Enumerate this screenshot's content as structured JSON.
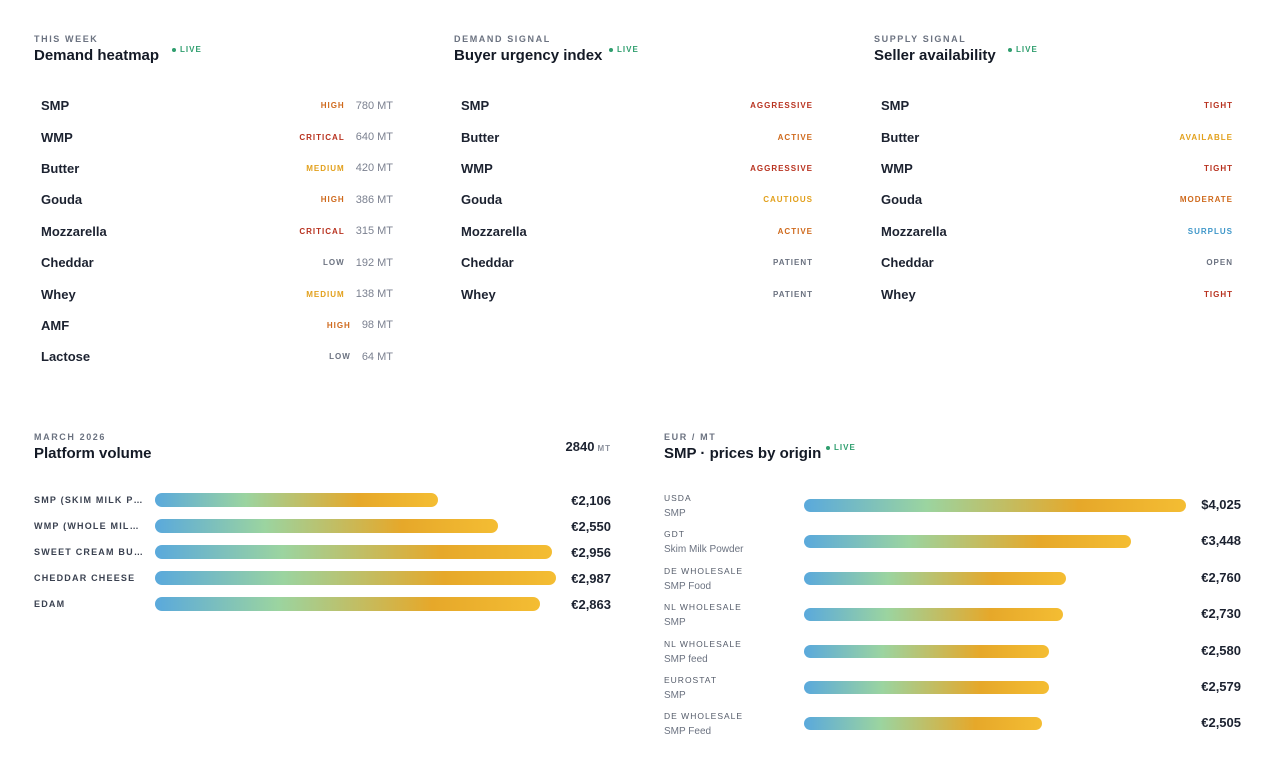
{
  "demand_heatmap": {
    "eyebrow": "THIS WEEK",
    "title": "Demand heatmap",
    "live": "LIVE",
    "rows": [
      {
        "name": "SMP",
        "tag": "HIGH",
        "tag_color": "#cf6a1d",
        "qty": "780 MT"
      },
      {
        "name": "WMP",
        "tag": "CRITICAL",
        "tag_color": "#b8321f",
        "qty": "640 MT"
      },
      {
        "name": "Butter",
        "tag": "MEDIUM",
        "tag_color": "#e2a01c",
        "qty": "420 MT"
      },
      {
        "name": "Gouda",
        "tag": "HIGH",
        "tag_color": "#cf6a1d",
        "qty": "386 MT"
      },
      {
        "name": "Mozzarella",
        "tag": "CRITICAL",
        "tag_color": "#b8321f",
        "qty": "315 MT"
      },
      {
        "name": "Cheddar",
        "tag": "LOW",
        "tag_color": "#6b7280",
        "qty": "192 MT"
      },
      {
        "name": "Whey",
        "tag": "MEDIUM",
        "tag_color": "#e2a01c",
        "qty": "138 MT"
      },
      {
        "name": "AMF",
        "tag": "HIGH",
        "tag_color": "#cf6a1d",
        "qty": "98 MT"
      },
      {
        "name": "Lactose",
        "tag": "LOW",
        "tag_color": "#6b7280",
        "qty": "64 MT"
      }
    ]
  },
  "buyer_urgency": {
    "eyebrow": "DEMAND SIGNAL",
    "title": "Buyer urgency index",
    "live": "LIVE",
    "rows": [
      {
        "name": "SMP",
        "tag": "AGGRESSIVE",
        "tag_color": "#b8321f"
      },
      {
        "name": "Butter",
        "tag": "ACTIVE",
        "tag_color": "#cf6a1d"
      },
      {
        "name": "WMP",
        "tag": "AGGRESSIVE",
        "tag_color": "#b8321f"
      },
      {
        "name": "Gouda",
        "tag": "CAUTIOUS",
        "tag_color": "#e2a01c"
      },
      {
        "name": "Mozzarella",
        "tag": "ACTIVE",
        "tag_color": "#cf6a1d"
      },
      {
        "name": "Cheddar",
        "tag": "PATIENT",
        "tag_color": "#6b7280"
      },
      {
        "name": "Whey",
        "tag": "PATIENT",
        "tag_color": "#6b7280"
      }
    ]
  },
  "seller_availability": {
    "eyebrow": "SUPPLY SIGNAL",
    "title": "Seller availability",
    "live": "LIVE",
    "rows": [
      {
        "name": "SMP",
        "tag": "TIGHT",
        "tag_color": "#b8321f"
      },
      {
        "name": "Butter",
        "tag": "AVAILABLE",
        "tag_color": "#e2a01c"
      },
      {
        "name": "WMP",
        "tag": "TIGHT",
        "tag_color": "#b8321f"
      },
      {
        "name": "Gouda",
        "tag": "MODERATE",
        "tag_color": "#cf6a1d"
      },
      {
        "name": "Mozzarella",
        "tag": "SURPLUS",
        "tag_color": "#3f97c9"
      },
      {
        "name": "Cheddar",
        "tag": "OPEN",
        "tag_color": "#6b7280"
      },
      {
        "name": "Whey",
        "tag": "TIGHT",
        "tag_color": "#b8321f"
      }
    ]
  },
  "platform_volume": {
    "eyebrow": "MARCH 2026",
    "title": "Platform volume",
    "total_value": "2840",
    "total_unit": "MT",
    "scale_max": 3000,
    "rows": [
      {
        "label": "SMP (SKIM MILK POWDER)",
        "value": 2106,
        "value_label": "€2,106"
      },
      {
        "label": "WMP (WHOLE MILK POWDER)",
        "value": 2550,
        "value_label": "€2,550"
      },
      {
        "label": "SWEET CREAM BUTTER",
        "value": 2956,
        "value_label": "€2,956"
      },
      {
        "label": "CHEDDAR CHEESE",
        "value": 2987,
        "value_label": "€2,987"
      },
      {
        "label": "EDAM",
        "value": 2863,
        "value_label": "€2,863"
      }
    ]
  },
  "smp_prices": {
    "eyebrow": "EUR / MT",
    "title": "SMP · prices by origin",
    "live": "LIVE",
    "scale_max": 4025,
    "rows": [
      {
        "source": "USDA",
        "product": "SMP",
        "value": 4025,
        "value_label": "$4,025"
      },
      {
        "source": "GDT",
        "product": "Skim Milk Powder",
        "value": 3448,
        "value_label": "€3,448"
      },
      {
        "source": "DE WHOLESALE",
        "product": "SMP Food",
        "value": 2760,
        "value_label": "€2,760"
      },
      {
        "source": "NL WHOLESALE",
        "product": "SMP",
        "value": 2730,
        "value_label": "€2,730"
      },
      {
        "source": "NL WHOLESALE",
        "product": "SMP feed",
        "value": 2580,
        "value_label": "€2,580"
      },
      {
        "source": "EUROSTAT",
        "product": "SMP",
        "value": 2579,
        "value_label": "€2,579"
      },
      {
        "source": "DE WHOLESALE",
        "product": "SMP Feed",
        "value": 2505,
        "value_label": "€2,505"
      }
    ]
  }
}
